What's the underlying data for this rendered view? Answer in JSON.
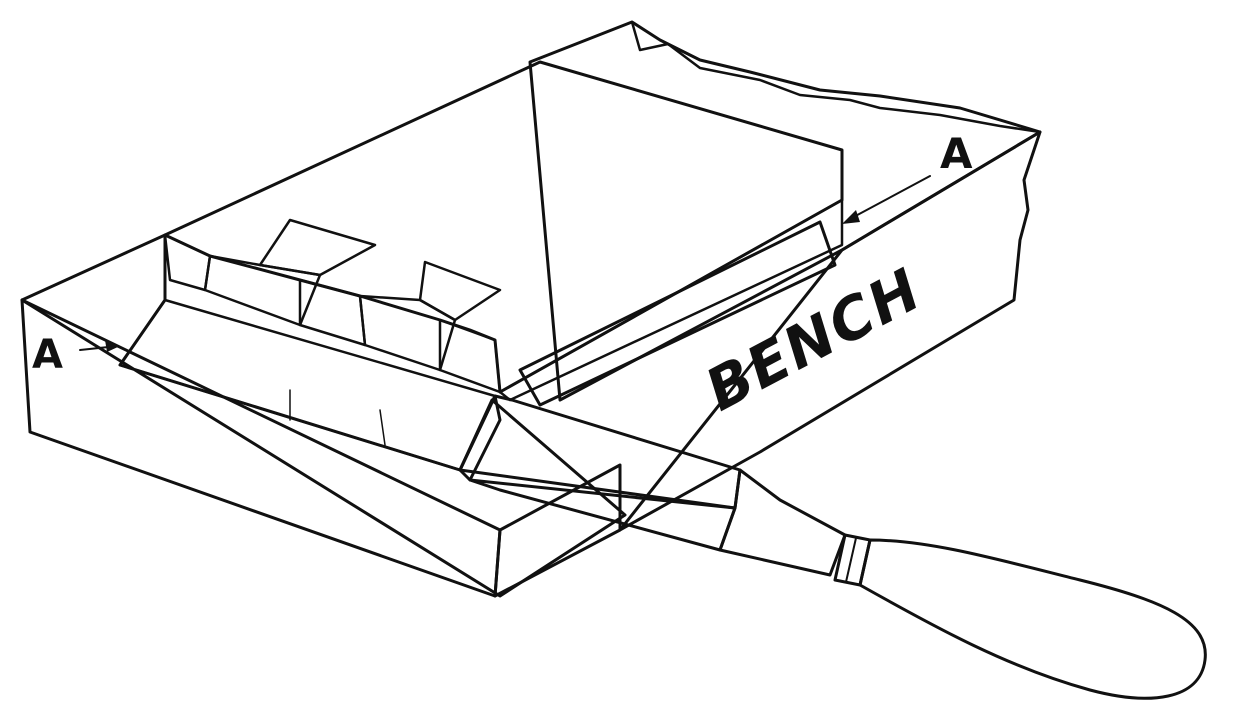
{
  "labels": {
    "left_marker": "A",
    "right_marker": "A",
    "bench": "BENCH"
  },
  "colors": {
    "ink": "#111111",
    "paper": "#ffffff"
  }
}
